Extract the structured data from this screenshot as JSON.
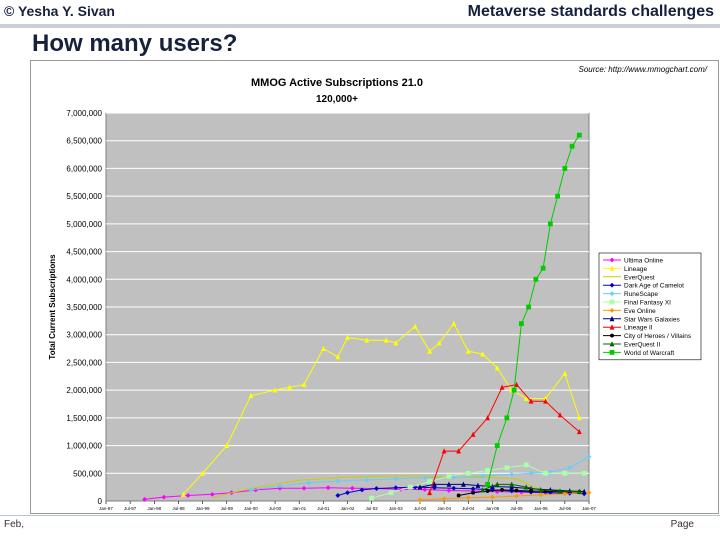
{
  "header": {
    "author": "© Yesha Y. Sivan",
    "presentation_title": "Metaverse standards challenges"
  },
  "slide": {
    "title": "How many users?",
    "source": "Source: http://www.mmogchart.com/"
  },
  "footer": {
    "date": "Feb,",
    "page": "Page"
  },
  "chart_data": {
    "type": "line",
    "title": "MMOG Active Subscriptions 21.0",
    "subtitle": "120,000+",
    "ylabel": "Total Current Subscriptions",
    "xlabel": "",
    "ylim": [
      0,
      7000000
    ],
    "yticks": [
      0,
      500000,
      1000000,
      1500000,
      2000000,
      2500000,
      3000000,
      3500000,
      4000000,
      4500000,
      5000000,
      5500000,
      6000000,
      6500000,
      7000000
    ],
    "ytick_labels": [
      "0",
      "500,000",
      "1,000,000",
      "1,500,000",
      "2,000,000",
      "2,500,000",
      "3,000,000",
      "3,500,000",
      "4,000,000",
      "4,500,000",
      "5,000,000",
      "5,500,000",
      "6,000,000",
      "6,500,000",
      "7,000,000"
    ],
    "xlim": [
      1997.0,
      2007.0
    ],
    "xticks": [
      1997.0,
      1997.5,
      1998.0,
      1998.5,
      1999.0,
      1999.5,
      2000.0,
      2000.5,
      2001.0,
      2001.5,
      2002.0,
      2002.5,
      2003.0,
      2003.5,
      2004.0,
      2004.5,
      2005.0,
      2005.5,
      2006.0,
      2006.5,
      2007.0
    ],
    "xtick_labels": [
      "Jan-97",
      "Jul-97",
      "Jan-98",
      "Jul-98",
      "Jan-99",
      "Jul-99",
      "Jan-00",
      "Jul-00",
      "Jan-01",
      "Jul-01",
      "Jan-02",
      "Jul-02",
      "Jan-03",
      "Jul-03",
      "Jan-04",
      "Jul-04",
      "Jan-05",
      "Jul-05",
      "Jan-06",
      "Jul-06",
      "Jan-07"
    ],
    "grid": true,
    "legend_position": "right",
    "series": [
      {
        "name": "Ultima Online",
        "color": "#ff00ff",
        "marker": "diamond",
        "x": [
          1997.8,
          1998.2,
          1998.7,
          1999.2,
          1999.6,
          2000.1,
          2000.6,
          2001.1,
          2001.6,
          2002.1,
          2002.6,
          2003.1,
          2003.6,
          2004.1,
          2004.6,
          2005.1,
          2005.6,
          2006.1,
          2006.6
        ],
        "y": [
          30000,
          70000,
          100000,
          120000,
          150000,
          200000,
          230000,
          230000,
          240000,
          230000,
          225000,
          210000,
          205000,
          190000,
          180000,
          170000,
          160000,
          150000,
          140000
        ]
      },
      {
        "name": "Lineage",
        "color": "#ffff00",
        "marker": "triangle",
        "x": [
          1998.6,
          1999.0,
          1999.5,
          2000.0,
          2000.5,
          2000.8,
          2001.1,
          2001.5,
          2001.8,
          2002.0,
          2002.4,
          2002.8,
          2003.0,
          2003.4,
          2003.7,
          2003.9,
          2004.2,
          2004.5,
          2004.8,
          2005.1,
          2005.4,
          2005.7,
          2006.1,
          2006.5,
          2006.8
        ],
        "y": [
          120000,
          500000,
          1000000,
          1900000,
          2000000,
          2050000,
          2100000,
          2750000,
          2600000,
          2950000,
          2900000,
          2900000,
          2850000,
          3150000,
          2700000,
          2850000,
          3200000,
          2700000,
          2650000,
          2400000,
          2000000,
          1850000,
          1850000,
          2300000,
          1500000
        ]
      },
      {
        "name": "EverQuest",
        "color": "#cccc00",
        "marker": "none",
        "x": [
          1999.2,
          1999.6,
          2000.0,
          2000.5,
          2001.0,
          2001.5,
          2002.0,
          2002.5,
          2003.0,
          2003.5,
          2004.0,
          2004.5,
          2005.0,
          2005.5,
          2006.0,
          2006.5,
          2006.9
        ],
        "y": [
          50000,
          150000,
          225000,
          300000,
          375000,
          400000,
          430000,
          440000,
          450000,
          450000,
          440000,
          430000,
          420000,
          400000,
          200000,
          190000,
          180000
        ]
      },
      {
        "name": "Dark Age of Camelot",
        "color": "#0000cc",
        "marker": "diamond",
        "x": [
          2001.8,
          2002.0,
          2002.3,
          2002.6,
          2003.0,
          2003.4,
          2003.8,
          2004.2,
          2004.6,
          2005.0,
          2005.4,
          2005.8,
          2006.2,
          2006.6,
          2006.9
        ],
        "y": [
          100000,
          150000,
          200000,
          225000,
          240000,
          250000,
          240000,
          230000,
          220000,
          200000,
          180000,
          160000,
          150000,
          140000,
          130000
        ]
      },
      {
        "name": "RuneScape",
        "color": "#66ccff",
        "marker": "diamond",
        "x": [
          2000.0,
          2000.6,
          2001.2,
          2001.8,
          2002.4,
          2003.0,
          2003.6,
          2004.2,
          2004.8,
          2005.4,
          2005.8,
          2006.2,
          2006.6,
          2007.0
        ],
        "y": [
          200000,
          270000,
          330000,
          360000,
          380000,
          400000,
          420000,
          430000,
          450000,
          480000,
          500000,
          520000,
          600000,
          800000
        ]
      },
      {
        "name": "Final Fantasy XI",
        "color": "#aaffaa",
        "marker": "square",
        "x": [
          2002.5,
          2002.9,
          2003.3,
          2003.7,
          2004.1,
          2004.5,
          2004.9,
          2005.3,
          2005.7,
          2006.1,
          2006.5,
          2006.9
        ],
        "y": [
          50000,
          150000,
          250000,
          350000,
          450000,
          500000,
          550000,
          600000,
          650000,
          500000,
          500000,
          500000
        ]
      },
      {
        "name": "Eve Online",
        "color": "#ff9900",
        "marker": "diamond",
        "x": [
          2003.5,
          2004.0,
          2004.5,
          2005.0,
          2005.5,
          2006.0,
          2006.5,
          2007.0
        ],
        "y": [
          20000,
          40000,
          60000,
          70000,
          90000,
          110000,
          130000,
          150000
        ]
      },
      {
        "name": "Star Wars Galaxies",
        "color": "#000080",
        "marker": "triangle",
        "x": [
          2003.5,
          2003.8,
          2004.1,
          2004.4,
          2004.7,
          2005.0,
          2005.4,
          2005.8,
          2006.2,
          2006.6,
          2006.9
        ],
        "y": [
          250000,
          300000,
          300000,
          300000,
          280000,
          260000,
          250000,
          220000,
          200000,
          180000,
          170000
        ]
      },
      {
        "name": "Lineage II",
        "color": "#ff0000",
        "marker": "triangle",
        "x": [
          2003.7,
          2004.0,
          2004.3,
          2004.6,
          2004.9,
          2005.2,
          2005.5,
          2005.8,
          2006.1,
          2006.4,
          2006.8
        ],
        "y": [
          150000,
          900000,
          900000,
          1200000,
          1500000,
          2050000,
          2100000,
          1800000,
          1800000,
          1550000,
          1250000
        ]
      },
      {
        "name": "City of Heroes / Villains",
        "color": "#000000",
        "marker": "circle",
        "x": [
          2004.3,
          2004.6,
          2004.9,
          2005.2,
          2005.5,
          2005.8,
          2006.1,
          2006.4,
          2006.8
        ],
        "y": [
          100000,
          150000,
          180000,
          200000,
          190000,
          180000,
          175000,
          170000,
          165000
        ]
      },
      {
        "name": "EverQuest II",
        "color": "#006600",
        "marker": "triangle",
        "x": [
          2004.8,
          2005.1,
          2005.4,
          2005.7,
          2006.0,
          2006.4,
          2006.8
        ],
        "y": [
          200000,
          300000,
          300000,
          250000,
          200000,
          175000,
          170000
        ]
      },
      {
        "name": "World of Warcraft",
        "color": "#00cc00",
        "marker": "square",
        "x": [
          2004.9,
          2005.1,
          2005.3,
          2005.45,
          2005.6,
          2005.75,
          2005.9,
          2006.05,
          2006.2,
          2006.35,
          2006.5,
          2006.65,
          2006.8
        ],
        "y": [
          300000,
          1000000,
          1500000,
          2000000,
          3200000,
          3500000,
          4000000,
          4200000,
          5000000,
          5500000,
          6000000,
          6400000,
          6600000
        ]
      }
    ]
  }
}
